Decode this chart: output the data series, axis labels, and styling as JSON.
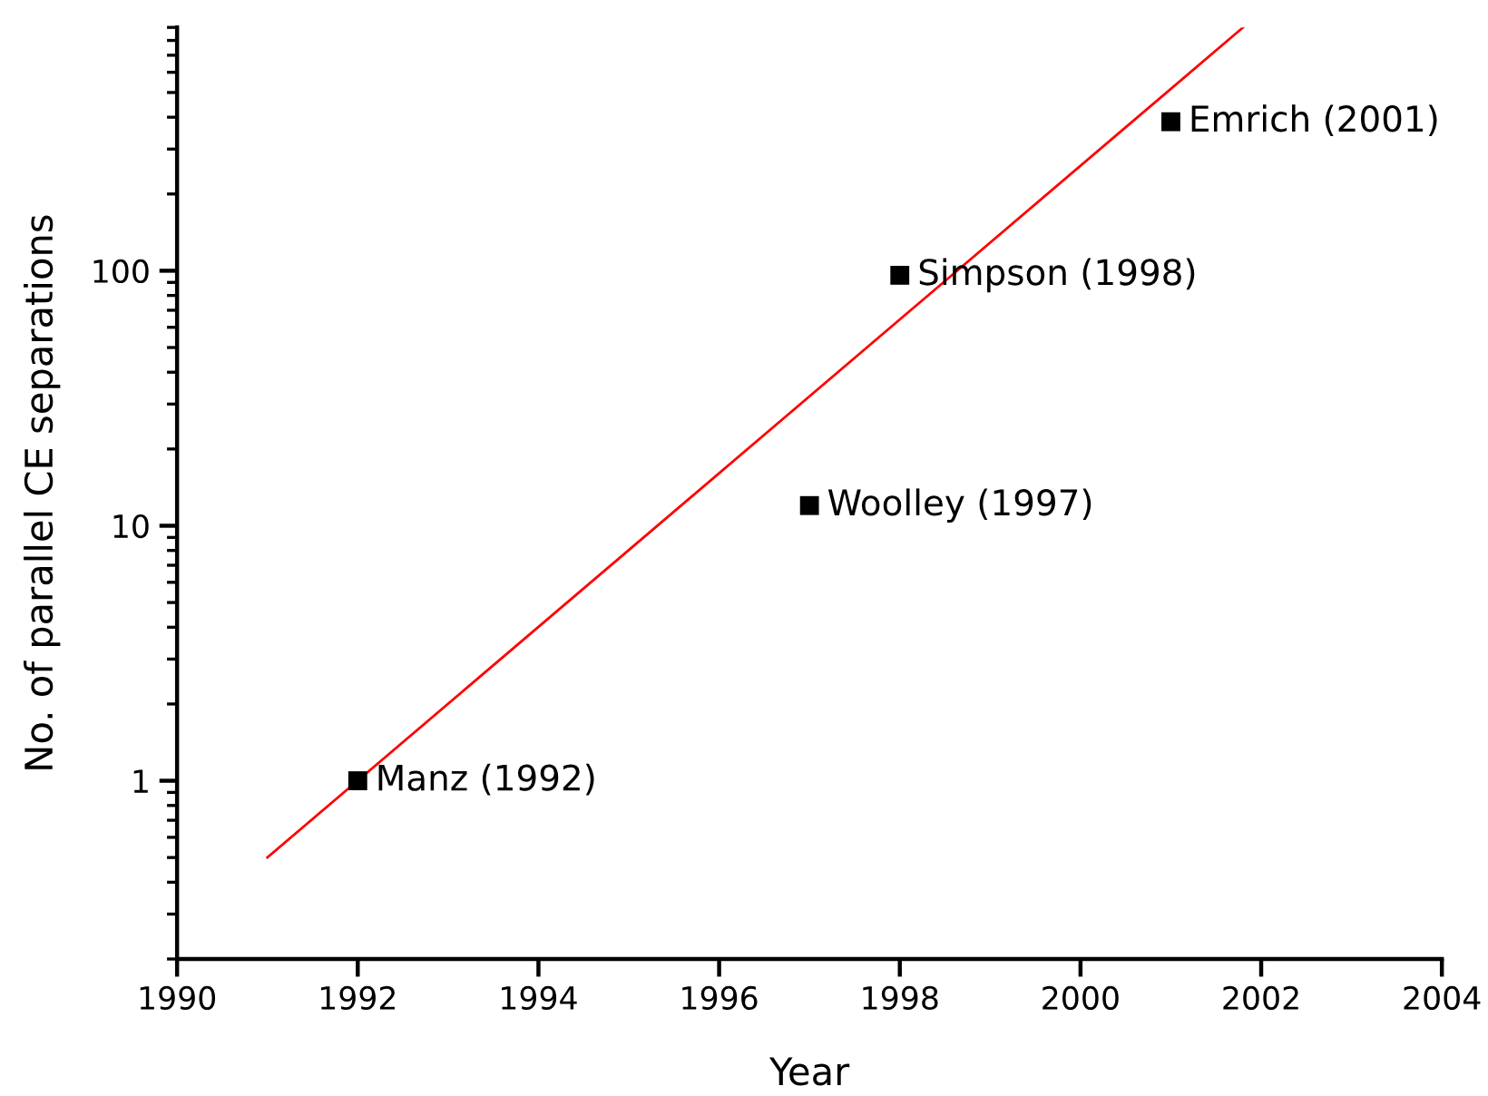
{
  "chart_data": {
    "type": "scatter",
    "xlabel": "Year",
    "ylabel": "No. of parallel CE separations",
    "series": [
      {
        "color": "#000000",
        "marker": "square",
        "x": [
          1992,
          1997,
          1998,
          2001
        ],
        "values": [
          1,
          12,
          96,
          384
        ]
      },
      {
        "type": "line",
        "color": "#ff0000",
        "marker": "none",
        "line_style": "solid",
        "x": [
          1991,
          2001.8
        ],
        "values": [
          0.5,
          900
        ]
      }
    ],
    "annotations": [
      {
        "text": "Manz (1992)",
        "x": 1992,
        "y": 1
      },
      {
        "text": "Woolley (1997)",
        "x": 1997,
        "y": 12
      },
      {
        "text": "Simpson (1998)",
        "x": 1998,
        "y": 96
      },
      {
        "text": "Emrich (2001)",
        "x": 2001,
        "y": 384
      }
    ],
    "xlim": [
      1990,
      2004
    ],
    "xticks": [
      1990,
      1992,
      1994,
      1996,
      1998,
      2000,
      2002,
      2004
    ],
    "ylim": [
      0.2,
      900
    ],
    "yticks": [
      1,
      10,
      100
    ],
    "log": "y",
    "grid": false,
    "legend": false
  }
}
